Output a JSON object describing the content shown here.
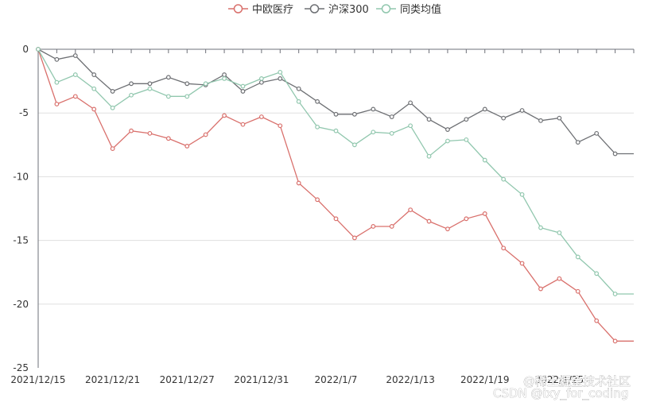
{
  "chart_data": {
    "type": "line",
    "title": "",
    "xlabel": "",
    "ylabel": "",
    "ylim": [
      -25,
      0
    ],
    "yticks": [
      0,
      -5,
      -10,
      -15,
      -20,
      -25
    ],
    "grid": true,
    "legend_position": "top-center",
    "x": [
      "2021/12/15",
      "2021/12/16",
      "2021/12/17",
      "2021/12/20",
      "2021/12/21",
      "2021/12/22",
      "2021/12/23",
      "2021/12/24",
      "2021/12/27",
      "2021/12/28",
      "2021/12/29",
      "2021/12/30",
      "2021/12/31",
      "2022/1/4",
      "2022/1/5",
      "2022/1/6",
      "2022/1/7",
      "2022/1/10",
      "2022/1/11",
      "2022/1/12",
      "2022/1/13",
      "2022/1/14",
      "2022/1/17",
      "2022/1/18",
      "2022/1/19",
      "2022/1/20",
      "2022/1/21",
      "2022/1/24",
      "2022/1/25",
      "2022/1/26",
      "2022/1/27",
      "2022/1/28",
      "2022/2/7"
    ],
    "xtick_labels": [
      "2021/12/15",
      "2021/12/21",
      "2021/12/27",
      "2021/12/31",
      "2022/1/7",
      "2022/1/13",
      "2022/1/19",
      "2022/1/25"
    ],
    "series": [
      {
        "name": "中欧医疗",
        "color": "#d9706c",
        "values": [
          0,
          -4.3,
          -3.7,
          -4.7,
          -7.8,
          -6.4,
          -6.6,
          -7.0,
          -7.6,
          -6.7,
          -5.2,
          -5.9,
          -5.3,
          -6.0,
          -10.5,
          -11.8,
          -13.3,
          -14.8,
          -13.9,
          -13.9,
          -12.6,
          -13.5,
          -14.1,
          -13.3,
          -12.9,
          -15.6,
          -16.8,
          -18.8,
          -18.0,
          -19.0,
          -21.3,
          -22.9,
          -22.9
        ]
      },
      {
        "name": "沪深300",
        "color": "#6e7074",
        "values": [
          0,
          -0.8,
          -0.5,
          -2.0,
          -3.3,
          -2.7,
          -2.7,
          -2.2,
          -2.7,
          -2.8,
          -2.0,
          -3.3,
          -2.6,
          -2.3,
          -3.1,
          -4.1,
          -5.1,
          -5.1,
          -4.7,
          -5.3,
          -4.2,
          -5.5,
          -6.3,
          -5.5,
          -4.7,
          -5.4,
          -4.8,
          -5.6,
          -5.4,
          -7.3,
          -6.6,
          -8.2,
          -8.2
        ]
      },
      {
        "name": "同类均值",
        "color": "#91c7ae",
        "values": [
          0,
          -2.6,
          -2.0,
          -3.1,
          -4.6,
          -3.6,
          -3.1,
          -3.7,
          -3.7,
          -2.7,
          -2.3,
          -2.9,
          -2.3,
          -1.8,
          -4.1,
          -6.1,
          -6.4,
          -7.5,
          -6.5,
          -6.6,
          -6.0,
          -8.4,
          -7.2,
          -7.1,
          -8.7,
          -10.2,
          -11.4,
          -14.0,
          -14.4,
          -16.3,
          -17.6,
          -19.2,
          -19.2
        ]
      }
    ]
  },
  "watermark": {
    "line1": "@稀土掘金技术社区",
    "line2": "CSDN @ixy_for_coding"
  }
}
